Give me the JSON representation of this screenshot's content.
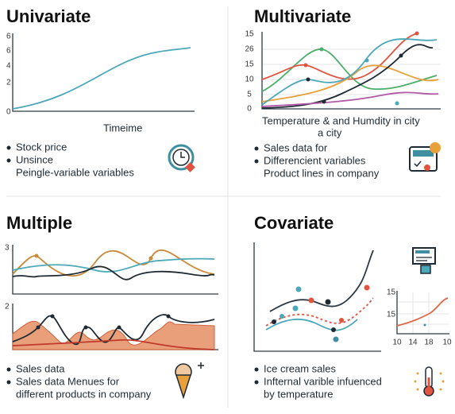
{
  "panels": [
    {
      "title": "Univariate",
      "ticks": [
        "6",
        "6",
        "4",
        "2",
        "0"
      ],
      "caption": [
        "Timeime"
      ],
      "bullets": [
        [
          "Stock price"
        ],
        [
          "Unsince",
          "Peingle-variable variables"
        ]
      ]
    },
    {
      "title": "Multivariate",
      "ticks": [
        "15",
        "26",
        "15",
        "10",
        "5",
        "0"
      ],
      "caption": [
        "Temperature & and Humdity in city",
        "a city"
      ],
      "bullets": [
        [
          "Sales data for"
        ],
        [
          "Differencient variables",
          "Product lines in company"
        ]
      ]
    },
    {
      "title": "Multiple",
      "ticks": [
        "3",
        "2"
      ],
      "caption": [],
      "bullets": [
        [
          "Sales data"
        ],
        [
          "Sales data Menues for",
          "different products in company"
        ]
      ]
    },
    {
      "title": "Covariate",
      "ticks": [
        "15",
        "15"
      ],
      "xticks": [
        "10",
        "14",
        "18",
        "10"
      ],
      "caption": [],
      "bullets": [
        [
          "Ice cream sales"
        ],
        [
          "Infternal varible infuenced",
          "by temperature"
        ]
      ]
    }
  ]
}
